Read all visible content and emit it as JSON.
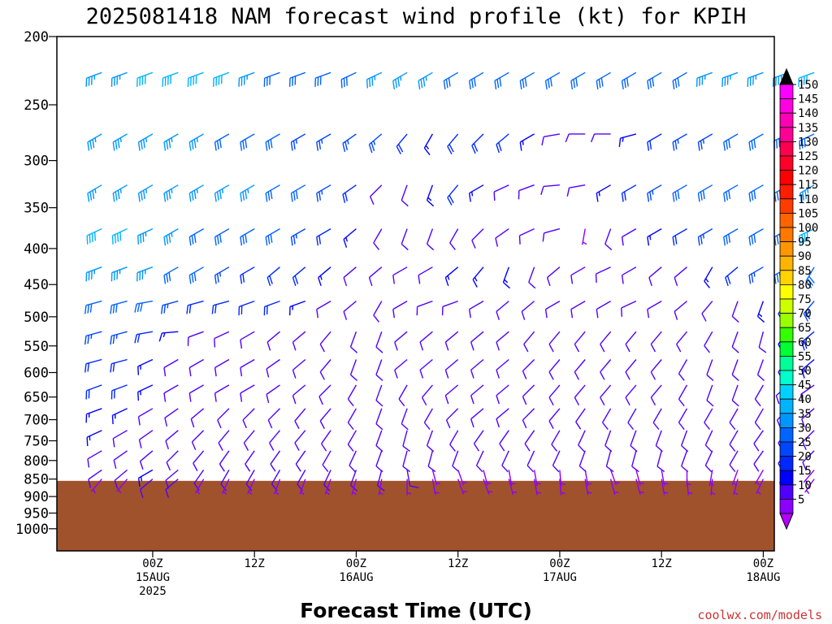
{
  "title": "2025081418 NAM forecast wind profile (kt) for KPIH",
  "xlabel": "Forecast Time (UTC)",
  "credit": "coolwx.com/models",
  "chart_data": {
    "type": "wind_barb_profile",
    "y_axis": {
      "scale": "log-pressure",
      "range_hpa": [
        200,
        1075
      ],
      "ticks": [
        {
          "value": 200,
          "label": "200"
        },
        {
          "value": 250,
          "label": "250"
        },
        {
          "value": 300,
          "label": "300"
        },
        {
          "value": 350,
          "label": "350"
        },
        {
          "value": 400,
          "label": "400"
        },
        {
          "value": 450,
          "label": "450"
        },
        {
          "value": 500,
          "label": "500"
        },
        {
          "value": 550,
          "label": "550"
        },
        {
          "value": 600,
          "label": "600"
        },
        {
          "value": 650,
          "label": "650"
        },
        {
          "value": 700,
          "label": "700"
        },
        {
          "value": 750,
          "label": "750"
        },
        {
          "value": 800,
          "label": "800"
        },
        {
          "value": 850,
          "label": "850"
        },
        {
          "value": 900,
          "label": "900"
        },
        {
          "value": 950,
          "label": "950"
        },
        {
          "value": 1000,
          "label": "1000"
        }
      ]
    },
    "x_axis": {
      "range_hours": [
        -5.3,
        79.3
      ],
      "ticks": [
        {
          "hour": 6,
          "lines": [
            "00Z",
            "15AUG",
            "2025"
          ]
        },
        {
          "hour": 18,
          "lines": [
            "12Z"
          ]
        },
        {
          "hour": 30,
          "lines": [
            "00Z",
            "16AUG"
          ]
        },
        {
          "hour": 42,
          "lines": [
            "12Z"
          ]
        },
        {
          "hour": 54,
          "lines": [
            "00Z",
            "17AUG"
          ]
        },
        {
          "hour": 66,
          "lines": [
            "12Z"
          ]
        },
        {
          "hour": 78,
          "lines": [
            "00Z",
            "18AUG"
          ]
        }
      ]
    },
    "forecast_hours": [
      0,
      3,
      6,
      9,
      12,
      15,
      18,
      21,
      24,
      27,
      30,
      33,
      36,
      39,
      42,
      45,
      48,
      51,
      54,
      57,
      60,
      63,
      66,
      69,
      72,
      75,
      78,
      81,
      84
    ],
    "levels_hpa": [
      225,
      275,
      325,
      375,
      425,
      475,
      525,
      575,
      625,
      675,
      725,
      775,
      825,
      850
    ],
    "surface_pressure_hpa": 855,
    "ground_color": "#a0522d",
    "wind_speed_kt": [
      [
        37,
        35,
        40,
        40,
        40,
        40,
        35,
        32,
        32,
        32,
        32,
        35,
        35,
        35,
        32,
        30,
        30,
        30,
        32,
        32,
        30,
        30,
        32,
        32,
        35,
        35,
        35,
        37,
        40
      ],
      [
        35,
        35,
        35,
        35,
        35,
        32,
        30,
        28,
        25,
        25,
        25,
        25,
        20,
        15,
        20,
        20,
        18,
        15,
        10,
        10,
        12,
        15,
        20,
        25,
        25,
        28,
        30,
        30,
        32
      ],
      [
        35,
        35,
        35,
        35,
        35,
        35,
        35,
        32,
        30,
        25,
        20,
        12,
        10,
        15,
        20,
        15,
        10,
        10,
        12,
        10,
        15,
        20,
        25,
        28,
        30,
        30,
        30,
        30,
        35
      ],
      [
        38,
        38,
        35,
        35,
        30,
        30,
        30,
        30,
        25,
        20,
        15,
        10,
        8,
        10,
        12,
        12,
        10,
        8,
        8,
        5,
        8,
        10,
        15,
        20,
        25,
        28,
        30,
        30,
        38
      ],
      [
        35,
        35,
        35,
        32,
        28,
        25,
        22,
        20,
        18,
        15,
        10,
        10,
        10,
        12,
        15,
        15,
        15,
        12,
        10,
        8,
        8,
        8,
        10,
        10,
        15,
        20,
        25,
        30,
        30
      ],
      [
        30,
        30,
        28,
        25,
        20,
        20,
        20,
        18,
        15,
        12,
        10,
        10,
        10,
        12,
        12,
        12,
        12,
        10,
        10,
        10,
        10,
        10,
        8,
        8,
        8,
        10,
        15,
        20,
        25
      ],
      [
        25,
        25,
        20,
        15,
        12,
        10,
        10,
        10,
        10,
        10,
        8,
        8,
        10,
        10,
        10,
        12,
        12,
        12,
        12,
        12,
        10,
        10,
        8,
        8,
        8,
        10,
        12,
        15,
        20
      ],
      [
        20,
        20,
        15,
        12,
        10,
        10,
        10,
        12,
        12,
        12,
        10,
        8,
        8,
        10,
        12,
        12,
        12,
        12,
        12,
        12,
        10,
        8,
        8,
        8,
        8,
        8,
        10,
        12,
        15
      ],
      [
        18,
        18,
        15,
        12,
        10,
        10,
        10,
        10,
        10,
        10,
        10,
        8,
        8,
        8,
        10,
        10,
        10,
        10,
        10,
        10,
        8,
        8,
        8,
        8,
        8,
        8,
        10,
        10,
        12
      ],
      [
        15,
        15,
        12,
        10,
        10,
        8,
        8,
        8,
        10,
        10,
        8,
        8,
        8,
        8,
        8,
        10,
        10,
        10,
        10,
        10,
        8,
        8,
        8,
        8,
        8,
        8,
        8,
        8,
        10
      ],
      [
        15,
        12,
        10,
        8,
        8,
        8,
        8,
        8,
        8,
        8,
        8,
        8,
        8,
        8,
        8,
        8,
        8,
        8,
        8,
        8,
        8,
        8,
        8,
        8,
        8,
        8,
        8,
        8,
        8
      ],
      [
        12,
        10,
        8,
        8,
        8,
        8,
        8,
        8,
        8,
        8,
        8,
        8,
        8,
        8,
        8,
        8,
        8,
        8,
        8,
        8,
        8,
        8,
        8,
        8,
        8,
        8,
        8,
        8,
        8
      ],
      [
        10,
        8,
        15,
        8,
        8,
        8,
        8,
        8,
        8,
        8,
        8,
        8,
        8,
        5,
        5,
        5,
        5,
        5,
        5,
        5,
        5,
        5,
        5,
        5,
        5,
        5,
        5,
        5,
        5
      ],
      [
        5,
        5,
        12,
        12,
        5,
        5,
        5,
        5,
        5,
        5,
        5,
        5,
        5,
        5,
        5,
        5,
        5,
        5,
        5,
        5,
        5,
        5,
        5,
        5,
        5,
        5,
        5,
        5,
        5
      ]
    ],
    "wind_dir_deg": [
      [
        250,
        250,
        250,
        250,
        250,
        250,
        250,
        250,
        250,
        250,
        245,
        245,
        240,
        240,
        240,
        240,
        240,
        240,
        240,
        240,
        240,
        240,
        240,
        240,
        250,
        250,
        250,
        250,
        250
      ],
      [
        240,
        240,
        240,
        240,
        240,
        240,
        240,
        240,
        240,
        240,
        235,
        230,
        220,
        210,
        220,
        225,
        230,
        240,
        260,
        270,
        270,
        255,
        240,
        240,
        240,
        240,
        240,
        245,
        245
      ],
      [
        240,
        240,
        240,
        240,
        240,
        240,
        240,
        240,
        240,
        240,
        235,
        225,
        200,
        200,
        220,
        240,
        245,
        250,
        265,
        260,
        240,
        240,
        240,
        240,
        240,
        240,
        240,
        240,
        240
      ],
      [
        245,
        245,
        245,
        240,
        240,
        240,
        240,
        240,
        240,
        240,
        230,
        210,
        200,
        200,
        210,
        225,
        235,
        245,
        255,
        190,
        200,
        240,
        240,
        240,
        240,
        240,
        240,
        240,
        245
      ],
      [
        250,
        250,
        250,
        240,
        240,
        240,
        240,
        230,
        230,
        230,
        230,
        230,
        240,
        240,
        230,
        220,
        200,
        200,
        230,
        240,
        245,
        240,
        230,
        230,
        210,
        230,
        240,
        240,
        210
      ],
      [
        255,
        255,
        260,
        255,
        255,
        255,
        250,
        250,
        250,
        240,
        230,
        210,
        240,
        250,
        250,
        240,
        230,
        230,
        240,
        240,
        240,
        245,
        240,
        230,
        220,
        200,
        200,
        220,
        220
      ],
      [
        255,
        255,
        260,
        265,
        250,
        245,
        240,
        230,
        230,
        220,
        200,
        200,
        230,
        230,
        230,
        230,
        230,
        220,
        220,
        220,
        220,
        220,
        220,
        220,
        210,
        200,
        195,
        220,
        230
      ],
      [
        255,
        255,
        245,
        240,
        240,
        240,
        240,
        235,
        230,
        220,
        200,
        200,
        230,
        230,
        230,
        230,
        230,
        225,
        220,
        220,
        220,
        220,
        220,
        210,
        200,
        200,
        200,
        220,
        230
      ],
      [
        250,
        250,
        245,
        240,
        240,
        240,
        240,
        235,
        230,
        225,
        210,
        200,
        210,
        220,
        230,
        230,
        230,
        225,
        220,
        220,
        220,
        220,
        220,
        210,
        200,
        200,
        210,
        230,
        235
      ],
      [
        250,
        245,
        240,
        235,
        230,
        225,
        225,
        225,
        220,
        220,
        210,
        200,
        200,
        210,
        225,
        230,
        230,
        225,
        220,
        215,
        210,
        210,
        210,
        210,
        210,
        210,
        210,
        225,
        230
      ],
      [
        245,
        240,
        235,
        230,
        225,
        220,
        220,
        220,
        220,
        215,
        210,
        200,
        195,
        200,
        210,
        215,
        215,
        215,
        210,
        205,
        200,
        200,
        200,
        200,
        205,
        210,
        215,
        220,
        225
      ],
      [
        240,
        235,
        230,
        225,
        220,
        215,
        215,
        215,
        215,
        210,
        205,
        200,
        195,
        195,
        200,
        205,
        205,
        205,
        205,
        200,
        195,
        195,
        195,
        200,
        205,
        210,
        215,
        220,
        225
      ],
      [
        235,
        230,
        240,
        230,
        215,
        210,
        210,
        210,
        210,
        205,
        200,
        195,
        170,
        165,
        160,
        165,
        170,
        170,
        175,
        170,
        160,
        165,
        170,
        180,
        190,
        200,
        210,
        215,
        220
      ],
      [
        220,
        220,
        230,
        230,
        210,
        205,
        205,
        200,
        200,
        200,
        195,
        190,
        180,
        170,
        160,
        160,
        165,
        170,
        175,
        170,
        165,
        165,
        170,
        175,
        185,
        195,
        205,
        210,
        215
      ]
    ],
    "colorbar": {
      "unit": "kt",
      "labels": [
        "150",
        "145",
        "140",
        "135",
        "130",
        "125",
        "120",
        "115",
        "110",
        "105",
        "100",
        "95",
        "90",
        "85",
        "80",
        "75",
        "70",
        "65",
        "60",
        "55",
        "50",
        "45",
        "40",
        "35",
        "30",
        "25",
        "20",
        "15",
        "10",
        "5"
      ],
      "colors": [
        "#ff00ff",
        "#ff00e0",
        "#ff00b4",
        "#ff0096",
        "#ff0050",
        "#ff0028",
        "#ff0000",
        "#ff1e00",
        "#ff3c00",
        "#ff6400",
        "#ff7800",
        "#ff9600",
        "#ffb400",
        "#ffd200",
        "#ffff00",
        "#ccff00",
        "#99ff00",
        "#33ff00",
        "#00ff33",
        "#00ff99",
        "#00ffcc",
        "#00d2ff",
        "#00b4ff",
        "#0096ff",
        "#0064ff",
        "#0046ff",
        "#0028ff",
        "#0000ff",
        "#5000ff",
        "#8c00ff"
      ],
      "top_triangle_color": "#000000",
      "bottom_triangle_color": "#b400ff"
    }
  }
}
